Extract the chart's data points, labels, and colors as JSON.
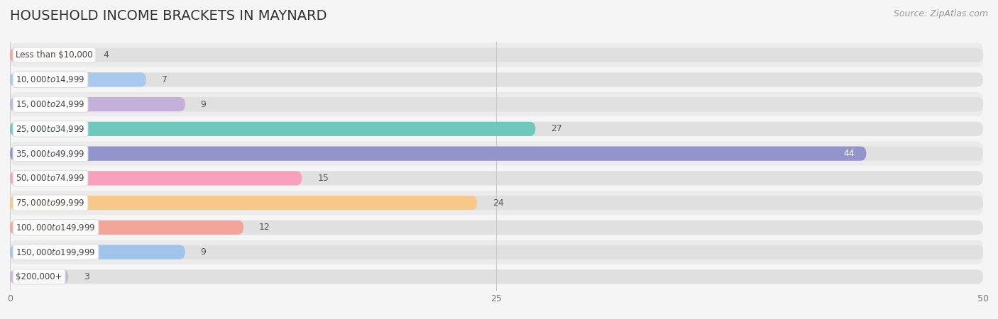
{
  "title": "HOUSEHOLD INCOME BRACKETS IN MAYNARD",
  "source": "Source: ZipAtlas.com",
  "categories": [
    "Less than $10,000",
    "$10,000 to $14,999",
    "$15,000 to $24,999",
    "$25,000 to $34,999",
    "$35,000 to $49,999",
    "$50,000 to $74,999",
    "$75,000 to $99,999",
    "$100,000 to $149,999",
    "$150,000 to $199,999",
    "$200,000+"
  ],
  "values": [
    4,
    7,
    9,
    27,
    44,
    15,
    24,
    12,
    9,
    3
  ],
  "bar_colors": [
    "#F2A49E",
    "#A8C8EC",
    "#C4B0D8",
    "#6EC8BE",
    "#9494CC",
    "#F8A0BC",
    "#F8C888",
    "#F2A498",
    "#A0C4EC",
    "#C8B8DC"
  ],
  "xlim": [
    0,
    50
  ],
  "xticks": [
    0,
    25,
    50
  ],
  "background_color": "#f5f5f5",
  "row_bg_even": "#ebebeb",
  "row_bg_odd": "#f5f5f5",
  "title_fontsize": 14,
  "source_fontsize": 9,
  "bar_height": 0.58,
  "value_label_inside": [
    false,
    false,
    false,
    false,
    true,
    false,
    false,
    false,
    false,
    false
  ]
}
